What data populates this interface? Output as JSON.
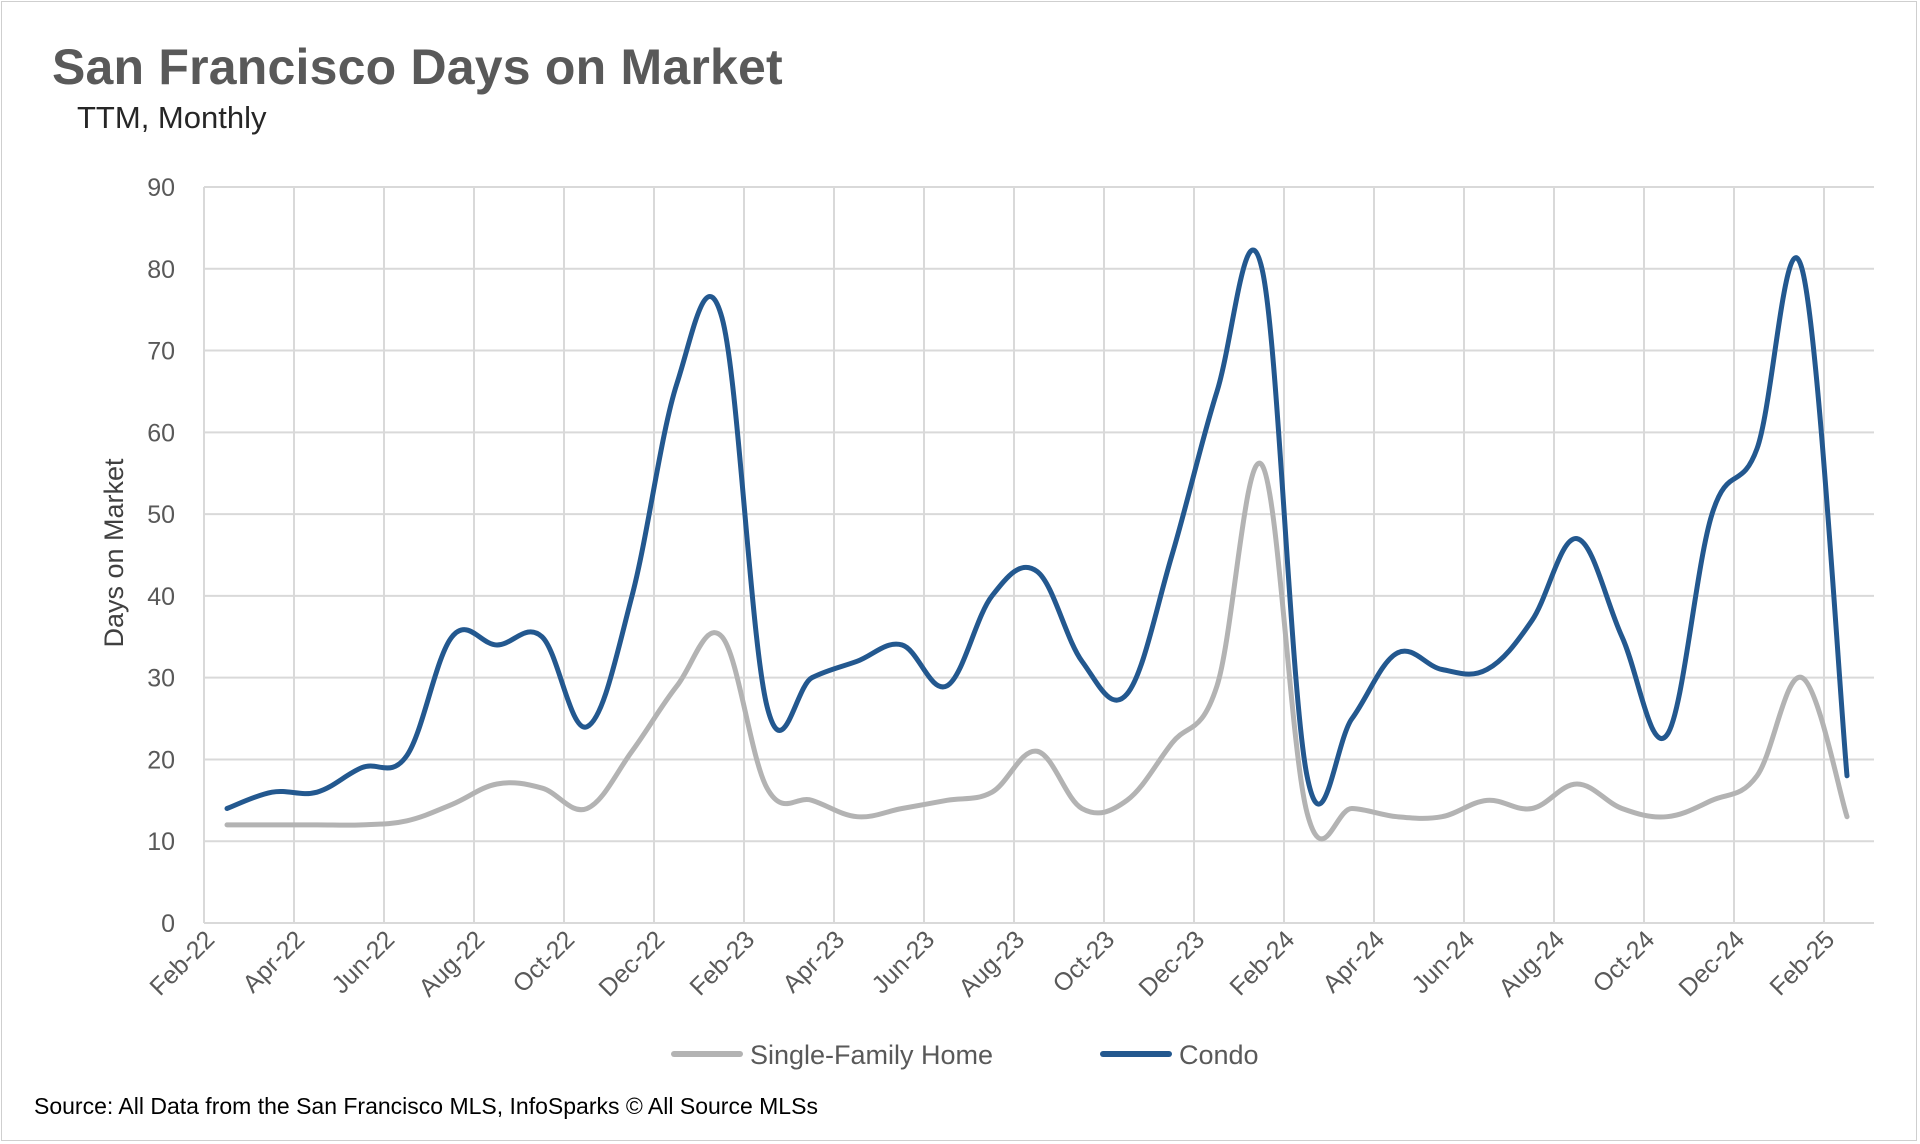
{
  "title": "San Francisco Days on Market",
  "subtitle": "TTM, Monthly",
  "source": "Source: All Data from the San Francisco MLS, InfoSparks © All Source MLSs",
  "chart_data": {
    "type": "line",
    "ylabel": "Days on Market",
    "ylim": [
      0,
      90
    ],
    "yticks": [
      "0",
      "10",
      "20",
      "30",
      "40",
      "50",
      "60",
      "70",
      "80",
      "90"
    ],
    "x": [
      "Feb-22",
      "Mar-22",
      "Apr-22",
      "May-22",
      "Jun-22",
      "Jul-22",
      "Aug-22",
      "Sep-22",
      "Oct-22",
      "Nov-22",
      "Dec-22",
      "Jan-23",
      "Feb-23",
      "Mar-23",
      "Apr-23",
      "May-23",
      "Jun-23",
      "Jul-23",
      "Aug-23",
      "Sep-23",
      "Oct-23",
      "Nov-23",
      "Dec-23",
      "Jan-24",
      "Feb-24",
      "Mar-24",
      "Apr-24",
      "May-24",
      "Jun-24",
      "Jul-24",
      "Aug-24",
      "Sep-24",
      "Oct-24",
      "Nov-24",
      "Dec-24",
      "Jan-25",
      "Feb-25"
    ],
    "xtick_labels": [
      "Feb-22",
      "Apr-22",
      "Jun-22",
      "Aug-22",
      "Oct-22",
      "Dec-22",
      "Feb-23",
      "Apr-23",
      "Jun-23",
      "Aug-23",
      "Oct-23",
      "Dec-23",
      "Feb-24",
      "Apr-24",
      "Jun-24",
      "Aug-24",
      "Oct-24",
      "Dec-24",
      "Feb-25"
    ],
    "grid": true,
    "legend_position": "bottom",
    "series": [
      {
        "name": "Single-Family Home",
        "color": "#b3b3b3",
        "values": [
          12,
          12,
          12,
          12,
          12.5,
          14.5,
          17,
          16.5,
          14,
          21,
          29,
          35,
          16.5,
          15,
          13,
          14,
          15,
          16,
          21,
          14,
          15,
          22,
          29,
          56,
          13.5,
          14,
          13,
          13,
          15,
          14,
          17,
          14,
          13,
          15,
          18,
          30,
          13
        ]
      },
      {
        "name": "Condo",
        "color": "#23588f",
        "values": [
          14,
          16,
          16,
          19,
          20.5,
          35,
          34,
          35,
          24,
          40,
          66,
          74,
          26.5,
          30,
          32,
          34,
          29,
          40,
          43,
          32,
          28,
          45,
          65,
          80,
          18,
          25,
          33,
          31,
          31,
          37,
          47,
          35,
          23,
          50,
          58,
          80,
          18
        ]
      }
    ]
  }
}
